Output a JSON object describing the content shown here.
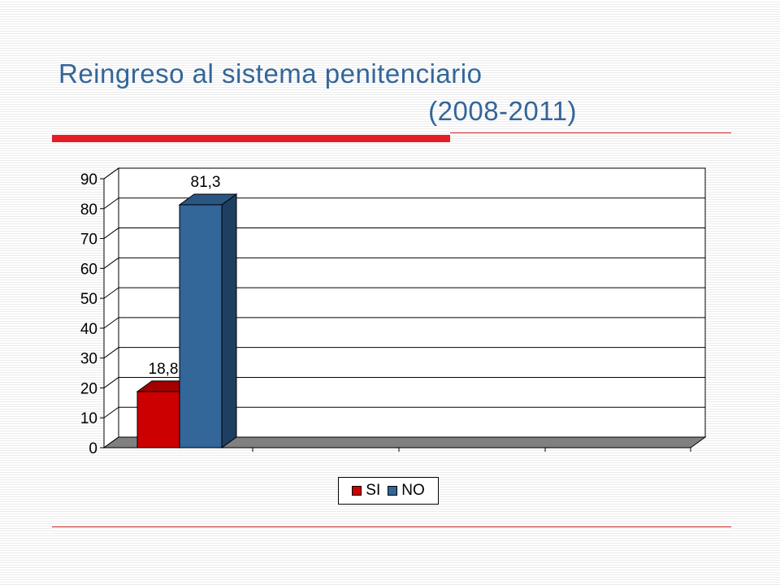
{
  "slide": {
    "title_line1": "Reingreso al sistema penitenciario",
    "title_line2": "(2008-2011)"
  },
  "colors": {
    "title": "#336699",
    "accent_rule": "#e31e24",
    "si_front": "#cc0000",
    "si_top": "#a30000",
    "si_side": "#8a0000",
    "no_front": "#336699",
    "no_top": "#2a5682",
    "no_side": "#1f3f61",
    "floor": "#808080",
    "wall": "#ffffff"
  },
  "chart_data": {
    "type": "bar",
    "categories": [
      ""
    ],
    "series": [
      {
        "name": "SI",
        "values": [
          18.8
        ],
        "labels": [
          "18,8"
        ],
        "color": "#cc0000"
      },
      {
        "name": "NO",
        "values": [
          81.3
        ],
        "labels": [
          "81,3"
        ],
        "color": "#336699"
      }
    ],
    "ylim": [
      0,
      90
    ],
    "yticks": [
      0,
      10,
      20,
      30,
      40,
      50,
      60,
      70,
      80,
      90
    ],
    "grid": true,
    "three_d": true,
    "legend_position": "bottom-center"
  }
}
